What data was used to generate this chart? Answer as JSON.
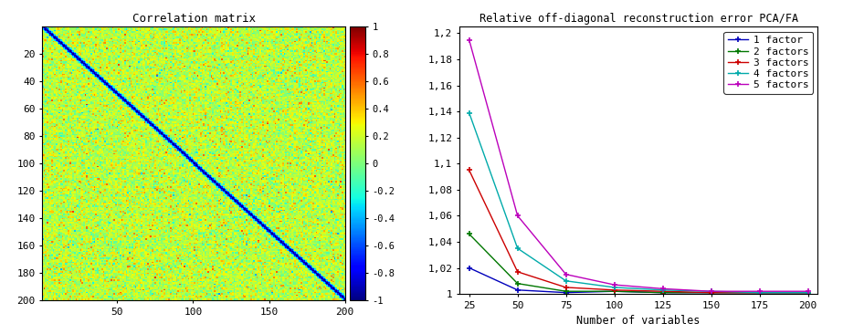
{
  "left_title": "Correlation matrix",
  "right_title": "Relative off-diagonal reconstruction error PCA/FA",
  "right_xlabel": "Number of variables",
  "colorbar_ticks": [
    1,
    0.8,
    0.6,
    0.4,
    0.2,
    0,
    -0.2,
    -0.4,
    -0.6,
    -0.8,
    -1
  ],
  "x_values": [
    25,
    50,
    75,
    100,
    125,
    150,
    175,
    200
  ],
  "lines": {
    "1 factor": [
      1.02,
      1.003,
      1.001,
      1.002,
      1.001,
      1.001,
      1.001,
      1.001
    ],
    "2 factors": [
      1.046,
      1.008,
      1.002,
      1.002,
      1.001,
      1.001,
      1.001,
      1.001
    ],
    "3 factors": [
      1.095,
      1.017,
      1.005,
      1.003,
      1.002,
      1.001,
      1.001,
      1.001
    ],
    "4 factors": [
      1.139,
      1.035,
      1.01,
      1.005,
      1.003,
      1.002,
      1.001,
      1.001
    ],
    "5 factors": [
      1.195,
      1.06,
      1.015,
      1.007,
      1.004,
      1.002,
      1.002,
      1.002
    ]
  },
  "line_colors": {
    "1 factor": "#0000bb",
    "2 factors": "#007700",
    "3 factors": "#cc0000",
    "4 factors": "#00aaaa",
    "5 factors": "#bb00bb"
  },
  "ylim": [
    1.0,
    1.205
  ],
  "yticks": [
    1.0,
    1.02,
    1.04,
    1.06,
    1.08,
    1.1,
    1.12,
    1.14,
    1.16,
    1.18,
    1.2
  ],
  "ytick_labels": [
    "1",
    "1,02",
    "1,04",
    "1,06",
    "1,08",
    "1,1",
    "1,12",
    "1,14",
    "1,16",
    "1,18",
    "1,2"
  ],
  "xticks": [
    25,
    50,
    75,
    100,
    125,
    150,
    175,
    200
  ],
  "matrix_size": 200,
  "matrix_seed": 12345,
  "font_family": "monospace"
}
